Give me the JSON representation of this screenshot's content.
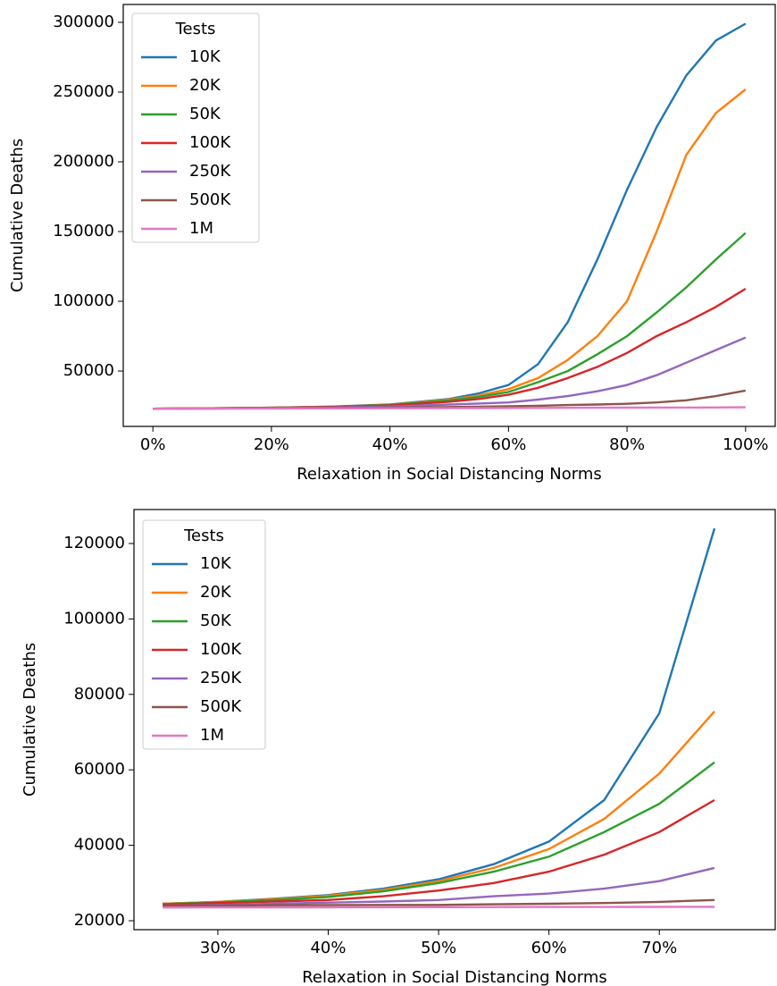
{
  "chart_data": [
    {
      "type": "line",
      "x_label": "Relaxation in Social Distancing Norms",
      "y_label": "Cumulative Deaths",
      "legend_title": "Tests",
      "legend_position": "upper left",
      "x": [
        0,
        10,
        20,
        30,
        40,
        50,
        55,
        60,
        65,
        70,
        75,
        80,
        85,
        90,
        95,
        100
      ],
      "xlim": [
        -5,
        105
      ],
      "xticks": [
        {
          "value": 0,
          "label": "0%"
        },
        {
          "value": 20,
          "label": "20%"
        },
        {
          "value": 40,
          "label": "40%"
        },
        {
          "value": 60,
          "label": "60%"
        },
        {
          "value": 80,
          "label": "80%"
        },
        {
          "value": 100,
          "label": "100%"
        }
      ],
      "ylim": [
        10300,
        312800
      ],
      "yticks": [
        50000,
        100000,
        150000,
        200000,
        250000,
        300000
      ],
      "series": [
        {
          "name": "10K",
          "color": "#1f77b4",
          "values": [
            23000,
            23300,
            23700,
            24500,
            26000,
            30000,
            34000,
            40000,
            55000,
            85000,
            130000,
            180000,
            225000,
            262000,
            287000,
            299000
          ]
        },
        {
          "name": "20K",
          "color": "#ff7f0e",
          "values": [
            23000,
            23300,
            23700,
            24400,
            25800,
            29500,
            32500,
            37000,
            45000,
            58000,
            75000,
            100000,
            150000,
            205000,
            235000,
            252000
          ]
        },
        {
          "name": "50K",
          "color": "#2ca02c",
          "values": [
            23000,
            23300,
            23700,
            24300,
            25600,
            29000,
            31500,
            35000,
            42000,
            50000,
            62000,
            75000,
            92000,
            110000,
            130000,
            149000
          ]
        },
        {
          "name": "100K",
          "color": "#d62728",
          "values": [
            23000,
            23300,
            23600,
            24200,
            25300,
            28000,
            30000,
            33000,
            38000,
            45000,
            53000,
            63000,
            75000,
            85000,
            96000,
            109000
          ]
        },
        {
          "name": "250K",
          "color": "#9467bd",
          "values": [
            23000,
            23200,
            23500,
            23900,
            24500,
            26000,
            26700,
            27500,
            29500,
            32000,
            35500,
            40000,
            47000,
            56000,
            65000,
            74000
          ]
        },
        {
          "name": "500K",
          "color": "#8c564b",
          "values": [
            23000,
            23100,
            23300,
            23500,
            23800,
            24200,
            24400,
            24700,
            25100,
            25600,
            26000,
            26500,
            27500,
            29000,
            32000,
            36000
          ]
        },
        {
          "name": "1M",
          "color": "#e377c2",
          "values": [
            23000,
            23050,
            23100,
            23200,
            23300,
            23400,
            23450,
            23500,
            23550,
            23600,
            23700,
            23750,
            23800,
            23850,
            23900,
            24000
          ]
        }
      ]
    },
    {
      "type": "line",
      "x_label": "Relaxation in Social Distancing Norms",
      "y_label": "Cumulative Deaths",
      "legend_title": "Tests",
      "legend_position": "upper left",
      "x": [
        25,
        30,
        35,
        40,
        45,
        50,
        55,
        60,
        65,
        70,
        75
      ],
      "xlim": [
        22.4,
        80.5
      ],
      "xticks": [
        {
          "value": 30,
          "label": "30%"
        },
        {
          "value": 40,
          "label": "40%"
        },
        {
          "value": 50,
          "label": "50%"
        },
        {
          "value": 60,
          "label": "60%"
        },
        {
          "value": 70,
          "label": "70%"
        }
      ],
      "ylim": [
        17630,
        129000
      ],
      "yticks": [
        20000,
        40000,
        60000,
        80000,
        100000,
        120000
      ],
      "series": [
        {
          "name": "10K",
          "color": "#1f77b4",
          "values": [
            24500,
            25000,
            25800,
            26800,
            28500,
            31000,
            35000,
            41000,
            52000,
            75000,
            124000
          ]
        },
        {
          "name": "20K",
          "color": "#ff7f0e",
          "values": [
            24500,
            25000,
            25700,
            26600,
            28200,
            30500,
            34000,
            39000,
            47000,
            59000,
            75500
          ]
        },
        {
          "name": "50K",
          "color": "#2ca02c",
          "values": [
            24400,
            24900,
            25500,
            26300,
            27800,
            30000,
            33000,
            37000,
            43500,
            51000,
            62000
          ]
        },
        {
          "name": "100K",
          "color": "#d62728",
          "values": [
            24300,
            24700,
            25100,
            25500,
            26500,
            28000,
            30000,
            33000,
            37500,
            43500,
            52000
          ]
        },
        {
          "name": "250K",
          "color": "#9467bd",
          "values": [
            24000,
            24200,
            24500,
            24800,
            25100,
            25500,
            26500,
            27200,
            28500,
            30500,
            34000
          ]
        },
        {
          "name": "500K",
          "color": "#8c564b",
          "values": [
            24000,
            24050,
            24100,
            24150,
            24200,
            24200,
            24350,
            24500,
            24700,
            25000,
            25500
          ]
        },
        {
          "name": "1M",
          "color": "#e377c2",
          "values": [
            23500,
            23520,
            23540,
            23560,
            23580,
            23600,
            23620,
            23640,
            23660,
            23680,
            23700
          ]
        }
      ]
    }
  ]
}
